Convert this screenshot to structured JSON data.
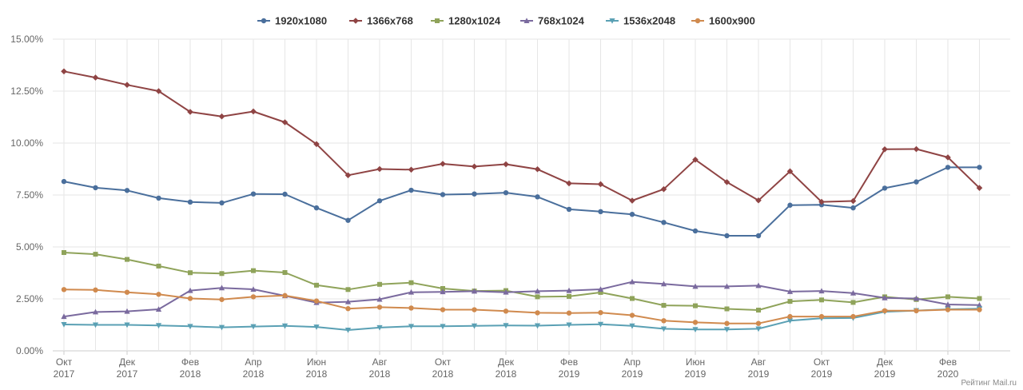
{
  "chart_data": {
    "type": "line",
    "title": "",
    "xlabel": "",
    "ylabel": "",
    "ylim": [
      0,
      15
    ],
    "y_ticks": [
      "0.00%",
      "2.50%",
      "5.00%",
      "7.50%",
      "10.00%",
      "12.50%",
      "15.00%"
    ],
    "legend_position": "top-center",
    "grid": true,
    "credit": "Рейтинг Mail.ru",
    "x": [
      "Окт 2017",
      "Ноя 2017",
      "Дек 2017",
      "Янв 2018",
      "Фев 2018",
      "Мар 2018",
      "Апр 2018",
      "Май 2018",
      "Июн 2018",
      "Июл 2018",
      "Авг 2018",
      "Сен 2018",
      "Окт 2018",
      "Ноя 2018",
      "Дек 2018",
      "Янв 2019",
      "Фев 2019",
      "Мар 2019",
      "Апр 2019",
      "Май 2019",
      "Июн 2019",
      "Июл 2019",
      "Авг 2019",
      "Сен 2019",
      "Окт 2019",
      "Ноя 2019",
      "Дек 2019",
      "Янв 2020",
      "Фев 2020",
      "Мар 2020"
    ],
    "x_ticks": [
      {
        "index": 0,
        "month": "Окт",
        "year": "2017"
      },
      {
        "index": 2,
        "month": "Дек",
        "year": "2017"
      },
      {
        "index": 4,
        "month": "Фев",
        "year": "2018"
      },
      {
        "index": 6,
        "month": "Апр",
        "year": "2018"
      },
      {
        "index": 8,
        "month": "Июн",
        "year": "2018"
      },
      {
        "index": 10,
        "month": "Авг",
        "year": "2018"
      },
      {
        "index": 12,
        "month": "Окт",
        "year": "2018"
      },
      {
        "index": 14,
        "month": "Дек",
        "year": "2018"
      },
      {
        "index": 16,
        "month": "Фев",
        "year": "2019"
      },
      {
        "index": 18,
        "month": "Апр",
        "year": "2019"
      },
      {
        "index": 20,
        "month": "Июн",
        "year": "2019"
      },
      {
        "index": 22,
        "month": "Авг",
        "year": "2019"
      },
      {
        "index": 24,
        "month": "Окт",
        "year": "2019"
      },
      {
        "index": 26,
        "month": "Дек",
        "year": "2019"
      },
      {
        "index": 28,
        "month": "Фев",
        "year": "2020"
      }
    ],
    "series": [
      {
        "name": "1920x1080",
        "color": "#4a6f9c",
        "marker": "circle",
        "values": [
          8.15,
          7.85,
          7.72,
          7.35,
          7.16,
          7.12,
          7.55,
          7.54,
          6.88,
          6.28,
          7.22,
          7.73,
          7.52,
          7.55,
          7.61,
          7.41,
          6.81,
          6.7,
          6.57,
          6.18,
          5.77,
          5.54,
          5.54,
          7.01,
          7.03,
          6.88,
          7.83,
          8.13,
          8.83,
          8.83
        ]
      },
      {
        "name": "1366x768",
        "color": "#8f4444",
        "marker": "diamond",
        "values": [
          13.45,
          13.15,
          12.8,
          12.5,
          11.5,
          11.28,
          11.52,
          11.0,
          9.95,
          8.45,
          8.75,
          8.72,
          9.0,
          8.87,
          8.98,
          8.74,
          8.06,
          8.02,
          7.23,
          7.78,
          9.2,
          8.12,
          7.24,
          8.64,
          7.17,
          7.21,
          9.7,
          9.71,
          9.31,
          7.84
        ]
      },
      {
        "name": "1280x1024",
        "color": "#8fa35a",
        "marker": "square",
        "values": [
          4.73,
          4.65,
          4.4,
          4.08,
          3.76,
          3.72,
          3.86,
          3.77,
          3.16,
          2.95,
          3.2,
          3.28,
          3.0,
          2.88,
          2.9,
          2.6,
          2.62,
          2.81,
          2.52,
          2.19,
          2.17,
          2.02,
          1.96,
          2.38,
          2.45,
          2.33,
          2.6,
          2.47,
          2.6,
          2.52
        ]
      },
      {
        "name": "768x1024",
        "color": "#7a6a9e",
        "marker": "triangle",
        "values": [
          1.65,
          1.87,
          1.9,
          2.0,
          2.9,
          3.03,
          2.96,
          2.65,
          2.32,
          2.36,
          2.48,
          2.82,
          2.84,
          2.87,
          2.82,
          2.87,
          2.9,
          2.96,
          3.32,
          3.22,
          3.1,
          3.1,
          3.14,
          2.85,
          2.88,
          2.78,
          2.55,
          2.52,
          2.23,
          2.2
        ]
      },
      {
        "name": "1536x2048",
        "color": "#5aa0b4",
        "marker": "triangle-down",
        "values": [
          1.27,
          1.25,
          1.25,
          1.22,
          1.18,
          1.13,
          1.17,
          1.2,
          1.15,
          1.0,
          1.12,
          1.18,
          1.18,
          1.2,
          1.22,
          1.21,
          1.25,
          1.28,
          1.2,
          1.06,
          1.03,
          1.03,
          1.06,
          1.45,
          1.57,
          1.58,
          1.88,
          1.94,
          2.0,
          2.03
        ]
      },
      {
        "name": "1600x900",
        "color": "#d08a4e",
        "marker": "circle",
        "values": [
          2.95,
          2.93,
          2.82,
          2.72,
          2.52,
          2.47,
          2.6,
          2.66,
          2.4,
          2.03,
          2.1,
          2.06,
          1.98,
          1.98,
          1.91,
          1.83,
          1.82,
          1.84,
          1.71,
          1.45,
          1.37,
          1.32,
          1.32,
          1.65,
          1.65,
          1.65,
          1.93,
          1.93,
          1.98,
          1.98
        ]
      }
    ]
  }
}
